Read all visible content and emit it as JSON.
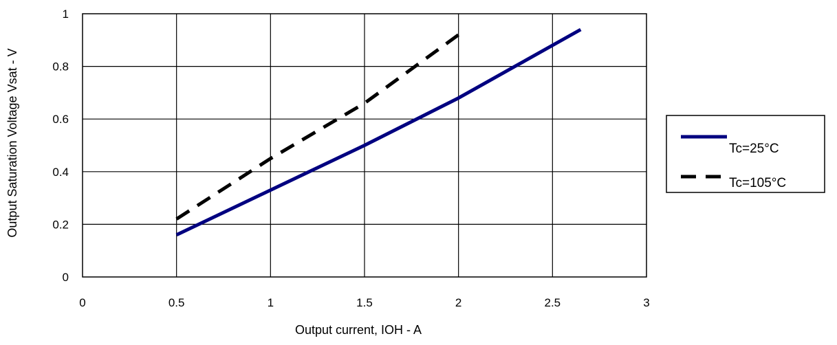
{
  "chart_data": {
    "type": "line",
    "title": "",
    "xlabel": "Output current,  IOH - A",
    "ylabel": "Output Saturation Voltage Vsat - V",
    "xlim": [
      0,
      3
    ],
    "ylim": [
      0,
      1
    ],
    "x_ticks": [
      0,
      0.5,
      1,
      1.5,
      2,
      2.5,
      3
    ],
    "x_tick_labels": [
      "0",
      "0.5",
      "1",
      "1.5",
      "2",
      "2.5",
      "3"
    ],
    "y_ticks": [
      0,
      0.2,
      0.4,
      0.6,
      0.8,
      1
    ],
    "y_tick_labels": [
      "0",
      "0.2",
      "0.4",
      "0.6",
      "0.8",
      "1"
    ],
    "grid": true,
    "legend_position": "right",
    "series": [
      {
        "name": "Tc=25°C",
        "color": "#000080",
        "style": "solid",
        "x": [
          0.5,
          1.0,
          1.5,
          2.0,
          2.3,
          2.65
        ],
        "y": [
          0.16,
          0.33,
          0.5,
          0.68,
          0.8,
          0.94
        ]
      },
      {
        "name": "Tc=105°C",
        "color": "#000000",
        "style": "dashed",
        "x": [
          0.5,
          1.0,
          1.5,
          2.0
        ],
        "y": [
          0.22,
          0.45,
          0.66,
          0.92
        ]
      }
    ]
  }
}
